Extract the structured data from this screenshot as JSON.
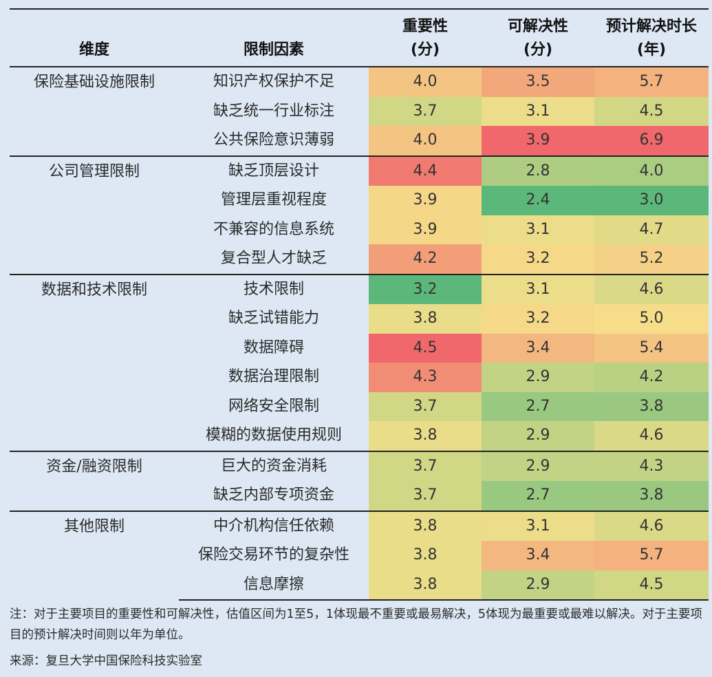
{
  "chart_data": {
    "type": "table",
    "columns": [
      {
        "line1": "维度",
        "line2": ""
      },
      {
        "line1": "限制因素",
        "line2": ""
      },
      {
        "line1": "重要性",
        "line2": "(分)"
      },
      {
        "line1": "可解决性",
        "line2": "(分)"
      },
      {
        "line1": "预计解决时长",
        "line2": "(年)"
      }
    ],
    "groups": [
      {
        "dimension": "保险基础设施限制",
        "rows": [
          {
            "factor": "知识产权保护不足",
            "importance": "4.0",
            "solvability": "3.5",
            "years": "5.7"
          },
          {
            "factor": "缺乏统一行业标注",
            "importance": "3.7",
            "solvability": "3.1",
            "years": "4.5"
          },
          {
            "factor": "公共保险意识薄弱",
            "importance": "4.0",
            "solvability": "3.9",
            "years": "6.9"
          }
        ]
      },
      {
        "dimension": "公司管理限制",
        "rows": [
          {
            "factor": "缺乏顶层设计",
            "importance": "4.4",
            "solvability": "2.8",
            "years": "4.0"
          },
          {
            "factor": "管理层重视程度",
            "importance": "3.9",
            "solvability": "2.4",
            "years": "3.0"
          },
          {
            "factor": "不兼容的信息系统",
            "importance": "3.9",
            "solvability": "3.1",
            "years": "4.7"
          },
          {
            "factor": "复合型人才缺乏",
            "importance": "4.2",
            "solvability": "3.2",
            "years": "5.2"
          }
        ]
      },
      {
        "dimension": "数据和技术限制",
        "rows": [
          {
            "factor": "技术限制",
            "importance": "3.2",
            "solvability": "3.1",
            "years": "4.6"
          },
          {
            "factor": "缺乏试错能力",
            "importance": "3.8",
            "solvability": "3.2",
            "years": "5.0"
          },
          {
            "factor": "数据障碍",
            "importance": "4.5",
            "solvability": "3.4",
            "years": "5.4"
          },
          {
            "factor": "数据治理限制",
            "importance": "4.3",
            "solvability": "2.9",
            "years": "4.2"
          },
          {
            "factor": "网络安全限制",
            "importance": "3.7",
            "solvability": "2.7",
            "years": "3.8"
          },
          {
            "factor": "模糊的数据使用规则",
            "importance": "3.8",
            "solvability": "2.9",
            "years": "4.6"
          }
        ]
      },
      {
        "dimension": "资金/融资限制",
        "rows": [
          {
            "factor": "巨大的资金消耗",
            "importance": "3.7",
            "solvability": "2.9",
            "years": "4.3"
          },
          {
            "factor": "缺乏内部专项资金",
            "importance": "3.7",
            "solvability": "2.7",
            "years": "3.8"
          }
        ]
      },
      {
        "dimension": "其他限制",
        "rows": [
          {
            "factor": "中介机构信任依赖",
            "importance": "3.8",
            "solvability": "3.1",
            "years": "4.6"
          },
          {
            "factor": "保险交易环节的复杂性",
            "importance": "3.8",
            "solvability": "3.4",
            "years": "5.7"
          },
          {
            "factor": "信息摩擦",
            "importance": "3.8",
            "solvability": "2.9",
            "years": "4.5"
          }
        ]
      }
    ],
    "color_scale": {
      "importance": [
        3.2,
        4.5
      ],
      "solvability": [
        2.4,
        3.9
      ],
      "years": [
        3.0,
        6.9
      ],
      "low_color": "#5cb87a",
      "mid_color": "#f5e08a",
      "high_color": "#f0686b"
    }
  },
  "note": "注：对于主要项目的重要性和可解决性，估值区间为1至5，1体现最不重要或最易解决，5体现为最重要或最难以解决。对于主要项目的预计解决时间则以年为单位。",
  "source": "来源：复旦大学中国保险科技实验室"
}
